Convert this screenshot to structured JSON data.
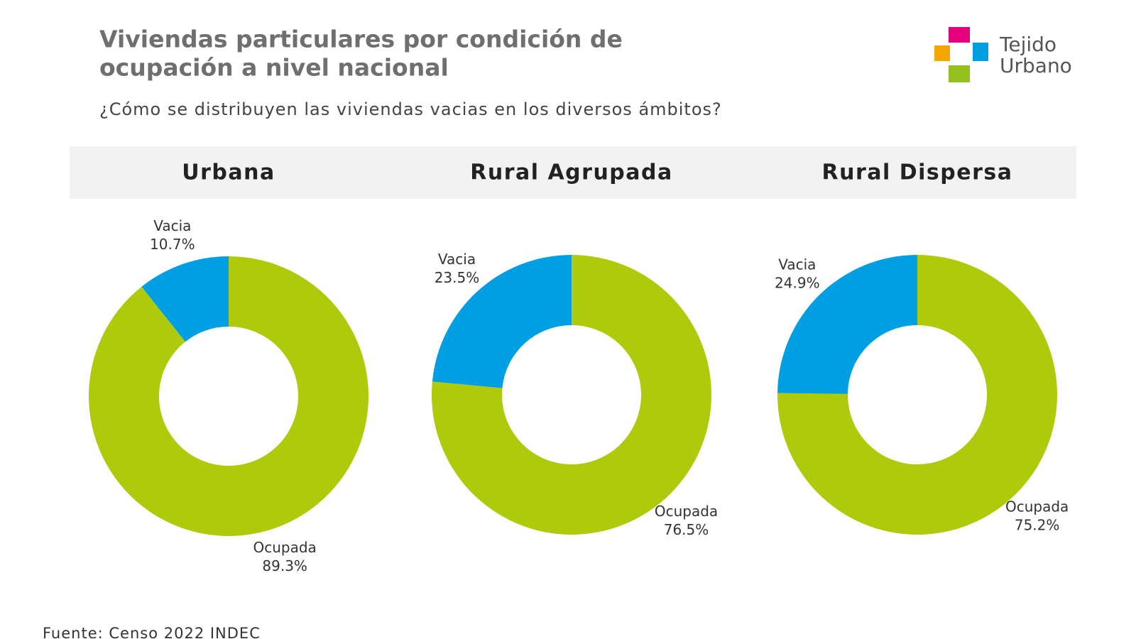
{
  "title": [
    "Viviendas particulares por condición de",
    "ocupación a nivel nacional"
  ],
  "subtitle": "¿Cómo se distribuyen las viviendas vacias en los diversos ámbitos?",
  "source": "Fuente: Censo 2022 INDEC",
  "logo": [
    "Tejido",
    "Urbano"
  ],
  "chart_data": [
    {
      "type": "donut",
      "title": "Urbana",
      "categories": [
        "Vacia",
        "Ocupada"
      ],
      "values": [
        10.7,
        89.3
      ],
      "value_labels": [
        "10.7%",
        "89.3%"
      ],
      "colors": [
        "#009fe3",
        "#afca0b"
      ]
    },
    {
      "type": "donut",
      "title": "Rural Agrupada",
      "categories": [
        "Vacia",
        "Ocupada"
      ],
      "values": [
        23.5,
        76.5
      ],
      "value_labels": [
        "23.5%",
        "76.5%"
      ],
      "colors": [
        "#009fe3",
        "#afca0b"
      ]
    },
    {
      "type": "donut",
      "title": "Rural Dispersa",
      "categories": [
        "Vacia",
        "Ocupada"
      ],
      "values": [
        24.9,
        75.2
      ],
      "value_labels": [
        "24.9%",
        "75.2%"
      ],
      "colors": [
        "#009fe3",
        "#afca0b"
      ]
    }
  ]
}
